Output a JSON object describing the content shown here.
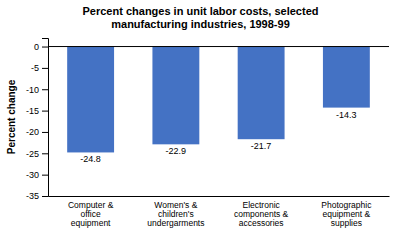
{
  "chart_data": {
    "type": "bar",
    "title": "Percent changes in unit labor costs, selected\nmanufacturing industries, 1998-99",
    "categories": [
      "Computer &\noffice\nequipment",
      "Women's &\nchildren's\nundergarments",
      "Electronic\ncomponents &\naccessories",
      "Photographic\nequipment &\nsupplies"
    ],
    "values": [
      -24.8,
      -22.9,
      -21.7,
      -14.3
    ],
    "color": "#4472C4",
    "ylabel": "Percent change",
    "ylim": [
      -35,
      2
    ],
    "yticks": [
      0,
      -5,
      -10,
      -15,
      -20,
      -25,
      -30,
      -35
    ],
    "data_labels": true,
    "grid": false
  }
}
